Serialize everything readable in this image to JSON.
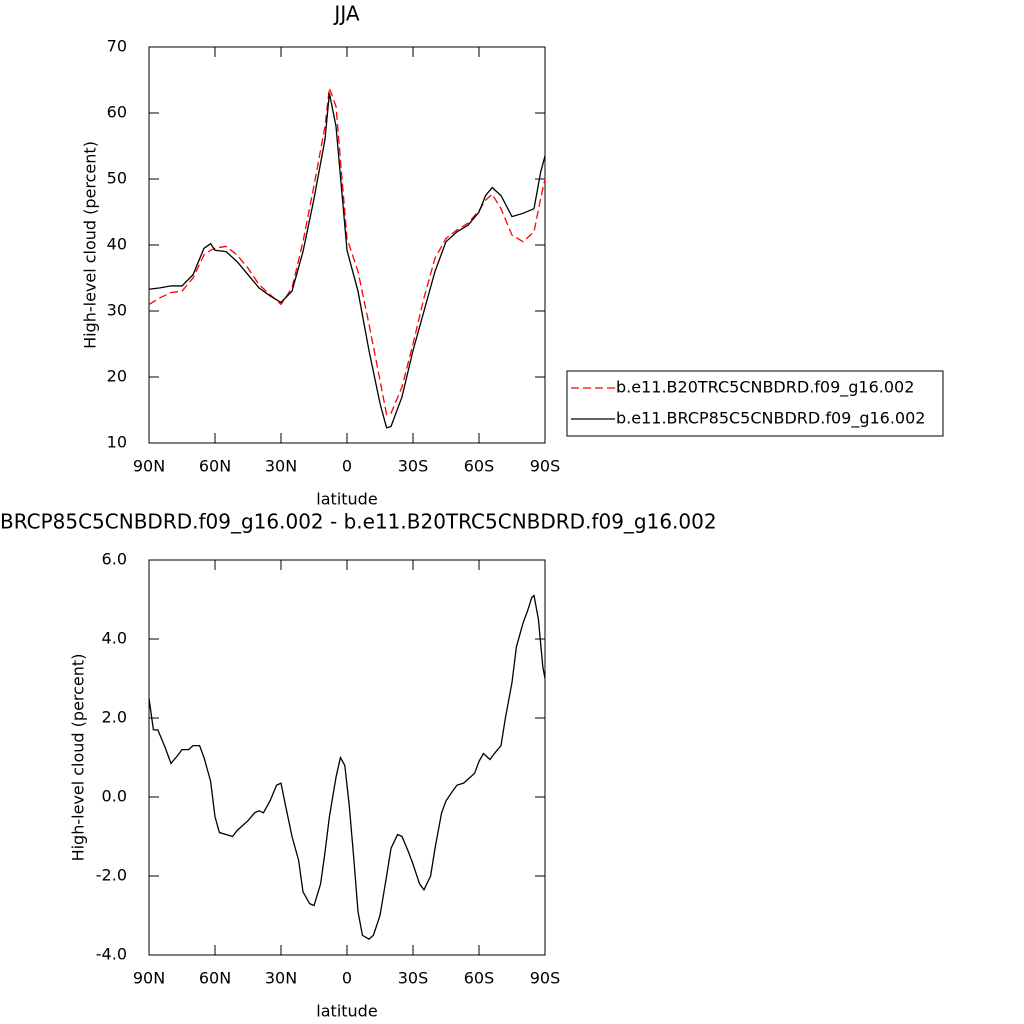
{
  "chart_data": [
    {
      "type": "line",
      "title": "JJA",
      "x_label": "latitude",
      "y_label": "High-level cloud (percent)",
      "x": [
        90,
        85,
        80,
        75,
        70,
        65,
        62,
        60,
        55,
        50,
        45,
        40,
        35,
        30,
        25,
        20,
        15,
        10,
        8,
        5,
        0,
        -5,
        -10,
        -15,
        -18,
        -20,
        -25,
        -30,
        -35,
        -40,
        -45,
        -50,
        -55,
        -60,
        -63,
        -66,
        -70,
        -75,
        -80,
        -85,
        -88,
        -90
      ],
      "series": [
        {
          "name": "b.e11.B20TRC5CNBDRD.f09_g16.002",
          "color": "#ff0000",
          "linestyle": "dashed",
          "values": [
            31,
            32,
            32.8,
            33,
            35,
            38.5,
            39.2,
            39.5,
            39.8,
            38.5,
            36.5,
            34,
            32.5,
            31,
            33.5,
            40.5,
            49,
            58,
            63.8,
            61,
            41,
            36,
            28,
            19.5,
            14.3,
            14.5,
            18.5,
            25,
            32,
            38,
            41,
            42.3,
            43.3,
            45.2,
            46.8,
            47.7,
            45.5,
            41.5,
            40.5,
            42,
            47,
            50
          ]
        },
        {
          "name": "b.e11.BRCP85C5CNBDRD.f09_g16.002",
          "color": "#000000",
          "linestyle": "solid",
          "values": [
            33.3,
            33.5,
            33.8,
            33.8,
            35.5,
            39.5,
            40.2,
            39.2,
            39,
            37.5,
            35.5,
            33.5,
            32.3,
            31.3,
            33,
            39,
            47,
            56,
            63,
            58,
            39.2,
            33,
            24,
            16,
            12.3,
            12.5,
            17,
            24,
            30,
            36,
            40.5,
            42,
            43,
            45,
            47.5,
            48.7,
            47.5,
            44.3,
            44.8,
            45.5,
            51,
            53.5
          ]
        }
      ],
      "xlim": [
        90,
        -90
      ],
      "xticks": [
        {
          "value": 90,
          "label": "90N"
        },
        {
          "value": 60,
          "label": "60N"
        },
        {
          "value": 30,
          "label": "30N"
        },
        0,
        {
          "value": -30,
          "label": "30S"
        },
        {
          "value": -60,
          "label": "60S"
        },
        {
          "value": -90,
          "label": "90S"
        }
      ],
      "ylim": [
        10,
        70
      ],
      "yticks": [
        10,
        20,
        30,
        40,
        50,
        60,
        70
      ],
      "legend": "right"
    },
    {
      "type": "line",
      "title": "BRCP85C5CNBDRD.f09_g16.002 - b.e11.B20TRC5CNBDRD.f09_g16.002",
      "x_label": "latitude",
      "y_label": "High-level cloud (percent)",
      "x": [
        90,
        88,
        86,
        83,
        80,
        77,
        75,
        72,
        70,
        67,
        65,
        62,
        60,
        58,
        55,
        52,
        50,
        45,
        42,
        40,
        38,
        35,
        32,
        30,
        28,
        25,
        22,
        20,
        17,
        15,
        12,
        10,
        8,
        5,
        3,
        1,
        -1,
        -3,
        -5,
        -7,
        -10,
        -12,
        -15,
        -18,
        -20,
        -23,
        -25,
        -28,
        -30,
        -33,
        -35,
        -38,
        -40,
        -43,
        -45,
        -48,
        -50,
        -53,
        -55,
        -58,
        -60,
        -62,
        -65,
        -67,
        -70,
        -72,
        -75,
        -77,
        -80,
        -82,
        -84,
        -85,
        -87,
        -89,
        -90
      ],
      "series": [
        {
          "color": "#000000",
          "linestyle": "solid",
          "values": [
            2.5,
            1.7,
            1.7,
            1.3,
            0.85,
            1.05,
            1.2,
            1.2,
            1.3,
            1.3,
            1.0,
            0.4,
            -0.5,
            -0.9,
            -0.95,
            -1.0,
            -0.85,
            -0.6,
            -0.4,
            -0.35,
            -0.4,
            -0.1,
            0.3,
            0.35,
            -0.2,
            -1.0,
            -1.6,
            -2.4,
            -2.7,
            -2.75,
            -2.2,
            -1.4,
            -0.5,
            0.5,
            1.0,
            0.8,
            -0.2,
            -1.5,
            -2.9,
            -3.5,
            -3.6,
            -3.5,
            -3.0,
            -2.0,
            -1.3,
            -0.95,
            -1.0,
            -1.4,
            -1.7,
            -2.2,
            -2.35,
            -2.0,
            -1.3,
            -0.4,
            -0.1,
            0.15,
            0.3,
            0.35,
            0.45,
            0.6,
            0.9,
            1.1,
            0.95,
            1.1,
            1.3,
            2.0,
            2.9,
            3.8,
            4.4,
            4.7,
            5.05,
            5.1,
            4.5,
            3.3,
            3.0
          ]
        }
      ],
      "xlim": [
        90,
        -90
      ],
      "xticks": [
        {
          "value": 90,
          "label": "90N"
        },
        {
          "value": 60,
          "label": "60N"
        },
        {
          "value": 30,
          "label": "30N"
        },
        0,
        {
          "value": -30,
          "label": "30S"
        },
        {
          "value": -60,
          "label": "60S"
        },
        {
          "value": -90,
          "label": "90S"
        }
      ],
      "ylim": [
        -4,
        6
      ],
      "yticks": [
        {
          "value": -4,
          "label": "-4.0"
        },
        {
          "value": -2,
          "label": "-2.0"
        },
        {
          "value": 0,
          "label": "0.0"
        },
        {
          "value": 2,
          "label": "2.0"
        },
        {
          "value": 4,
          "label": "4.0"
        },
        {
          "value": 6,
          "label": "6.0"
        }
      ]
    }
  ]
}
